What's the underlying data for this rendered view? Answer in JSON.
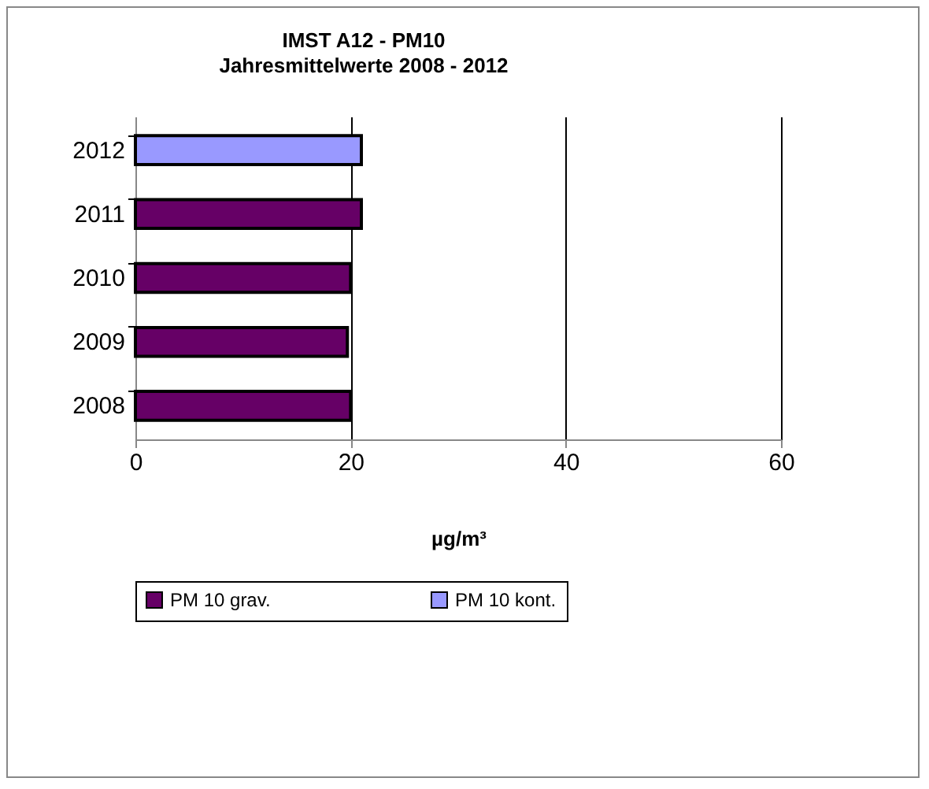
{
  "chart_data": {
    "type": "bar",
    "orientation": "horizontal",
    "title": "IMST  A12  - PM10",
    "subtitle": "Jahresmittelwerte  2008  - 2012",
    "xlabel": "µg/m³",
    "categories": [
      "2012",
      "2011",
      "2010",
      "2009",
      "2008"
    ],
    "series": [
      {
        "name": "PM 10 grav.",
        "color": "#660066",
        "values": [
          null,
          21,
          20,
          19.7,
          20
        ]
      },
      {
        "name": "PM 10 kont.",
        "color": "#9999ff",
        "values": [
          21,
          null,
          null,
          null,
          null
        ]
      }
    ],
    "xlim": [
      0,
      60
    ],
    "xticks": [
      0,
      20,
      40,
      60
    ],
    "grid": "x",
    "legend": "bottom"
  }
}
